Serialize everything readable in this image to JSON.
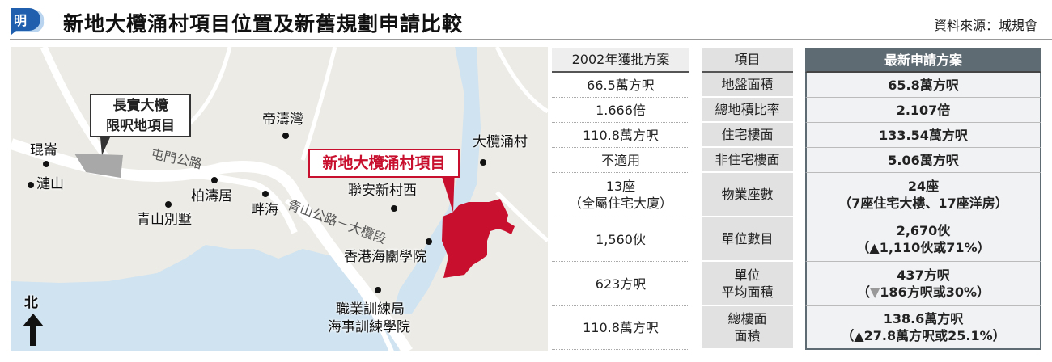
{
  "header": {
    "logo_text": "明",
    "title": "新地大欖涌村項目位置及新舊規劃申請比較",
    "source": "資料來源：城規會"
  },
  "colors": {
    "project_red": "#c8102e",
    "water": "#cfe3f1",
    "land": "#ecebe6",
    "header_dark": "#5f6b73"
  },
  "map": {
    "ck_box": [
      "長實大欖",
      "限呎地項目"
    ],
    "shk_box": "新地大欖涌村項目",
    "places": {
      "kwun_lun": "琨崙",
      "lin_shan": "漣山",
      "dragon_bay": "帝濤灣",
      "villa_pinewood": "柏濤居",
      "castle_peak_villa": "青山別墅",
      "bayside": "畔海",
      "luen_on": "聯安新村西",
      "customs": "香港海關學院",
      "tai_lam_chung": "大欖涌村",
      "vtc1": "職業訓練局",
      "vtc2": "海事訓練學院"
    },
    "roads": {
      "tuen_mun_road": "屯門公路",
      "castle_peak_road": "青山公路－大欖段"
    },
    "north": "北"
  },
  "table": {
    "headers": [
      "2002年獲批方案",
      "項目",
      "最新申請方案"
    ],
    "rows": [
      {
        "old": [
          "66.5萬方呎"
        ],
        "item": [
          "地盤面積"
        ],
        "new": [
          "65.8萬方呎"
        ]
      },
      {
        "old": [
          "1.666倍"
        ],
        "item": [
          "總地積比率"
        ],
        "new": [
          "2.107倍"
        ]
      },
      {
        "old": [
          "110.8萬方呎"
        ],
        "item": [
          "住宅樓面"
        ],
        "new": [
          "133.54萬方呎"
        ]
      },
      {
        "old": [
          "不適用"
        ],
        "item": [
          "非住宅樓面"
        ],
        "new": [
          "5.06萬方呎"
        ]
      },
      {
        "old": [
          "13座",
          "（全屬住宅大廈）"
        ],
        "item": [
          "物業座數"
        ],
        "new": [
          "24座",
          "（7座住宅大樓、17座洋房）"
        ]
      },
      {
        "old": [
          "1,560伙"
        ],
        "item": [
          "單位數目"
        ],
        "new": [
          "2,670伙"
        ],
        "change": {
          "dir": "up",
          "symbol": "▲",
          "text": "1,110伙或71%"
        }
      },
      {
        "old": [
          "623方呎"
        ],
        "item": [
          "單位",
          "平均面積"
        ],
        "new": [
          "437方呎"
        ],
        "change": {
          "dir": "down",
          "symbol": "▼",
          "text": "186方呎或30%"
        }
      },
      {
        "old": [
          "110.8萬方呎"
        ],
        "item": [
          "總樓面",
          "面積"
        ],
        "new": [
          "138.6萬方呎"
        ],
        "change": {
          "dir": "up",
          "symbol": "▲",
          "text": "27.8萬方呎或25.1%"
        }
      }
    ]
  }
}
